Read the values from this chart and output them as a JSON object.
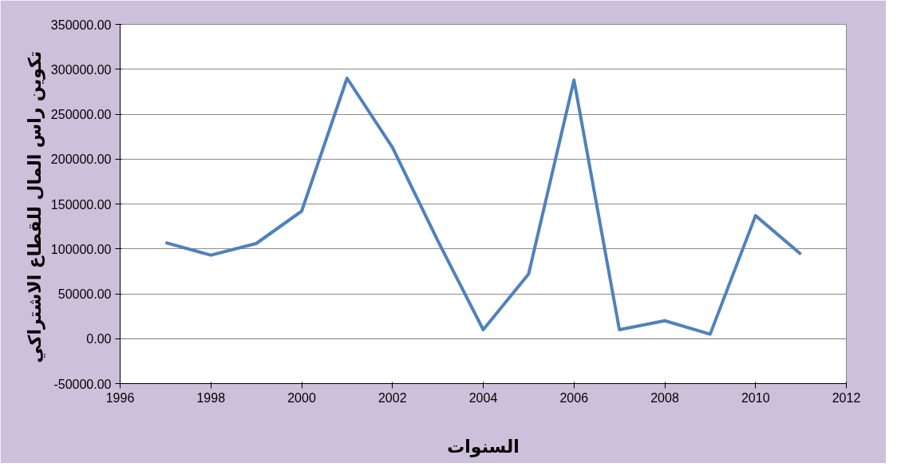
{
  "chart_data": {
    "type": "line",
    "xlabel": "السنوات",
    "ylabel": "تكوين راس المال  للقطاع الاشتراكي",
    "x": [
      1997,
      1998,
      1999,
      2000,
      2001,
      2002,
      2003,
      2004,
      2005,
      2006,
      2007,
      2008,
      2009,
      2010,
      2011
    ],
    "series": [
      {
        "color": "#4f81bd",
        "values": [
          107000,
          93000,
          106000,
          142000,
          290000,
          213000,
          109000,
          10000,
          72000,
          288000,
          10000,
          20000,
          5000,
          137000,
          94000
        ]
      }
    ],
    "xlim": [
      1996,
      2012
    ],
    "xticks": [
      1996,
      1998,
      2000,
      2002,
      2004,
      2006,
      2008,
      2010,
      2012
    ],
    "ylim": [
      -50000,
      350000
    ],
    "yticks": [
      {
        "value": -50000,
        "label": "-50000.00"
      },
      {
        "value": 0,
        "label": "0.00"
      },
      {
        "value": 50000,
        "label": "50000.00"
      },
      {
        "value": 100000,
        "label": "100000.00"
      },
      {
        "value": 150000,
        "label": "150000.00"
      },
      {
        "value": 200000,
        "label": "200000.00"
      },
      {
        "value": 250000,
        "label": "250000.00"
      },
      {
        "value": 300000,
        "label": "300000.00"
      },
      {
        "value": 350000,
        "label": "350000.00"
      }
    ],
    "grid": "y",
    "marker": "none",
    "line_style": "solid"
  }
}
